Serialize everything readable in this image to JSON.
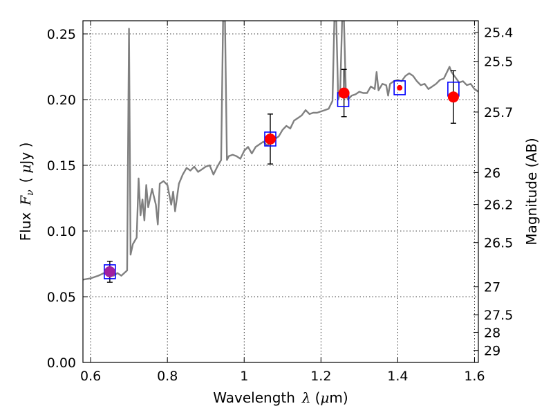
{
  "chart_data": {
    "type": "scatter",
    "title": "",
    "xlabel": {
      "text": "Wavelength",
      "symbol": "λ",
      "unit_open": "(",
      "unit_mu": "μ",
      "unit_rest": "m)"
    },
    "ylabel": {
      "text": "Flux",
      "symbol": "F",
      "subscript": "ν",
      "unit_open": "(",
      "unit_mu": "μ",
      "unit_rest": "Jy )"
    },
    "y2label": "Magnitude (AB)",
    "xlim": [
      0.58,
      1.61
    ],
    "ylim": [
      0.0,
      0.26
    ],
    "grid": true,
    "x_ticks": [
      {
        "v": 0.6,
        "label": "0.6"
      },
      {
        "v": 0.8,
        "label": "0.8"
      },
      {
        "v": 1.0,
        "label": "1"
      },
      {
        "v": 1.2,
        "label": "1.2"
      },
      {
        "v": 1.4,
        "label": "1.4"
      },
      {
        "v": 1.6,
        "label": "1.6"
      }
    ],
    "y_ticks": [
      {
        "v": 0.0,
        "label": "0.00"
      },
      {
        "v": 0.05,
        "label": "0.05"
      },
      {
        "v": 0.1,
        "label": "0.10"
      },
      {
        "v": 0.15,
        "label": "0.15"
      },
      {
        "v": 0.2,
        "label": "0.20"
      },
      {
        "v": 0.25,
        "label": "0.25"
      }
    ],
    "mag_ticks": [
      {
        "mag": 25.4,
        "label": "25.4"
      },
      {
        "mag": 25.5,
        "label": "25.5"
      },
      {
        "mag": 25.7,
        "label": "25.7"
      },
      {
        "mag": 26.0,
        "label": "26"
      },
      {
        "mag": 26.2,
        "label": "26.2"
      },
      {
        "mag": 26.5,
        "label": "26.5"
      },
      {
        "mag": 27.0,
        "label": "27"
      },
      {
        "mag": 27.5,
        "label": "27.5"
      },
      {
        "mag": 28.0,
        "label": "28"
      },
      {
        "mag": 29.0,
        "label": "29"
      }
    ],
    "spectrum": {
      "color": "#808080",
      "points": [
        [
          0.58,
          0.063
        ],
        [
          0.6,
          0.064
        ],
        [
          0.62,
          0.066
        ],
        [
          0.635,
          0.068
        ],
        [
          0.65,
          0.067
        ],
        [
          0.66,
          0.066
        ],
        [
          0.67,
          0.068
        ],
        [
          0.68,
          0.066
        ],
        [
          0.695,
          0.07
        ],
        [
          0.7,
          0.254
        ],
        [
          0.704,
          0.082
        ],
        [
          0.71,
          0.09
        ],
        [
          0.72,
          0.095
        ],
        [
          0.725,
          0.14
        ],
        [
          0.73,
          0.112
        ],
        [
          0.735,
          0.124
        ],
        [
          0.74,
          0.108
        ],
        [
          0.745,
          0.135
        ],
        [
          0.75,
          0.118
        ],
        [
          0.76,
          0.132
        ],
        [
          0.77,
          0.12
        ],
        [
          0.775,
          0.105
        ],
        [
          0.78,
          0.136
        ],
        [
          0.79,
          0.138
        ],
        [
          0.8,
          0.135
        ],
        [
          0.81,
          0.12
        ],
        [
          0.815,
          0.13
        ],
        [
          0.82,
          0.115
        ],
        [
          0.83,
          0.136
        ],
        [
          0.84,
          0.143
        ],
        [
          0.85,
          0.148
        ],
        [
          0.86,
          0.146
        ],
        [
          0.87,
          0.149
        ],
        [
          0.88,
          0.145
        ],
        [
          0.89,
          0.147
        ],
        [
          0.9,
          0.149
        ],
        [
          0.91,
          0.15
        ],
        [
          0.92,
          0.143
        ],
        [
          0.93,
          0.149
        ],
        [
          0.94,
          0.154
        ],
        [
          0.945,
          0.26
        ],
        [
          0.95,
          0.26
        ],
        [
          0.955,
          0.154
        ],
        [
          0.96,
          0.157
        ],
        [
          0.97,
          0.158
        ],
        [
          0.98,
          0.157
        ],
        [
          0.99,
          0.155
        ],
        [
          1.0,
          0.161
        ],
        [
          1.01,
          0.164
        ],
        [
          1.02,
          0.159
        ],
        [
          1.03,
          0.164
        ],
        [
          1.04,
          0.166
        ],
        [
          1.05,
          0.168
        ],
        [
          1.06,
          0.165
        ],
        [
          1.07,
          0.168
        ],
        [
          1.08,
          0.17
        ],
        [
          1.09,
          0.172
        ],
        [
          1.1,
          0.177
        ],
        [
          1.11,
          0.18
        ],
        [
          1.12,
          0.178
        ],
        [
          1.13,
          0.184
        ],
        [
          1.14,
          0.186
        ],
        [
          1.15,
          0.188
        ],
        [
          1.16,
          0.192
        ],
        [
          1.17,
          0.189
        ],
        [
          1.18,
          0.19
        ],
        [
          1.19,
          0.19
        ],
        [
          1.2,
          0.191
        ],
        [
          1.21,
          0.192
        ],
        [
          1.22,
          0.193
        ],
        [
          1.23,
          0.199
        ],
        [
          1.235,
          0.26
        ],
        [
          1.24,
          0.26
        ],
        [
          1.245,
          0.2
        ],
        [
          1.25,
          0.205
        ],
        [
          1.255,
          0.26
        ],
        [
          1.26,
          0.26
        ],
        [
          1.265,
          0.205
        ],
        [
          1.27,
          0.2
        ],
        [
          1.28,
          0.203
        ],
        [
          1.29,
          0.204
        ],
        [
          1.3,
          0.206
        ],
        [
          1.31,
          0.205
        ],
        [
          1.32,
          0.205
        ],
        [
          1.33,
          0.21
        ],
        [
          1.34,
          0.208
        ],
        [
          1.345,
          0.221
        ],
        [
          1.35,
          0.207
        ],
        [
          1.36,
          0.212
        ],
        [
          1.37,
          0.211
        ],
        [
          1.375,
          0.203
        ],
        [
          1.38,
          0.212
        ],
        [
          1.39,
          0.214
        ],
        [
          1.4,
          0.215
        ],
        [
          1.41,
          0.214
        ],
        [
          1.42,
          0.218
        ],
        [
          1.43,
          0.22
        ],
        [
          1.44,
          0.218
        ],
        [
          1.45,
          0.214
        ],
        [
          1.46,
          0.211
        ],
        [
          1.47,
          0.212
        ],
        [
          1.48,
          0.208
        ],
        [
          1.49,
          0.21
        ],
        [
          1.5,
          0.212
        ],
        [
          1.51,
          0.215
        ],
        [
          1.52,
          0.216
        ],
        [
          1.53,
          0.222
        ],
        [
          1.535,
          0.225
        ],
        [
          1.54,
          0.221
        ],
        [
          1.55,
          0.217
        ],
        [
          1.56,
          0.213
        ],
        [
          1.57,
          0.214
        ],
        [
          1.58,
          0.211
        ],
        [
          1.59,
          0.212
        ],
        [
          1.6,
          0.208
        ],
        [
          1.61,
          0.206
        ]
      ]
    },
    "model_boxes": {
      "color": "#0000ff",
      "points": [
        {
          "x": 0.65,
          "y": 0.069
        },
        {
          "x": 1.068,
          "y": 0.17
        },
        {
          "x": 1.258,
          "y": 0.2
        },
        {
          "x": 1.405,
          "y": 0.209
        },
        {
          "x": 1.545,
          "y": 0.208
        }
      ]
    },
    "observed": {
      "points": [
        {
          "x": 0.65,
          "y": 0.069,
          "err": 0.008,
          "color": "#a020a0"
        },
        {
          "x": 1.068,
          "y": 0.17,
          "err": 0.019,
          "color": "#ff0000"
        },
        {
          "x": 1.26,
          "y": 0.205,
          "err": 0.018,
          "color": "#ff0000"
        },
        {
          "x": 1.405,
          "y": 0.209,
          "err": 0.0,
          "color": "#ff0000",
          "small": true
        },
        {
          "x": 1.545,
          "y": 0.202,
          "err": 0.02,
          "color": "#ff0000"
        }
      ]
    }
  }
}
